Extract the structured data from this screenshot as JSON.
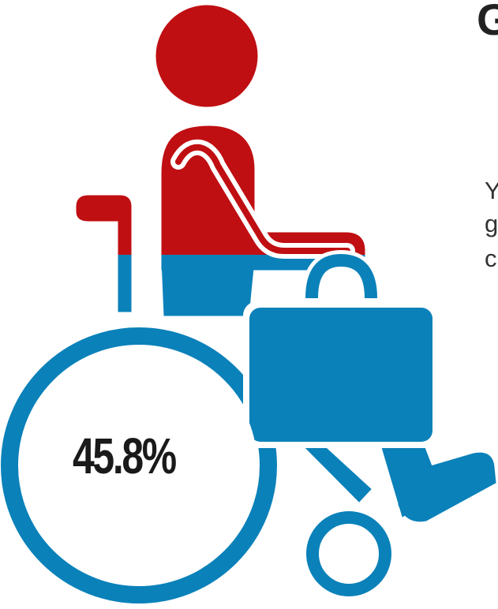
{
  "statistic": {
    "value": "45.8%",
    "fraction": 0.458
  },
  "colors": {
    "upper": "#c00f12",
    "lower": "#0a81b9",
    "background": "#ffffff",
    "text": "#1a1a1a"
  },
  "icons": {
    "figure": "wheelchair-user-with-briefcase-icon"
  },
  "clipped_text": {
    "heading_fragment": "G",
    "line_1": "Y",
    "line_2": "g",
    "line_3": "c"
  }
}
